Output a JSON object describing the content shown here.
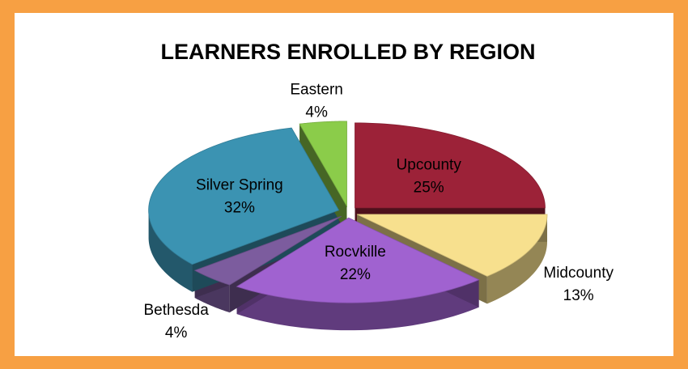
{
  "chart_data": {
    "type": "pie",
    "title": "LEARNERS ENROLLED BY REGION",
    "categories": [
      "Upcounty",
      "Midcounty",
      "Rocvkille",
      "Bethesda",
      "Silver Spring",
      "Eastern"
    ],
    "values": [
      25,
      13,
      22,
      4,
      32,
      4
    ],
    "value_labels": [
      "25%",
      "13%",
      "22%",
      "4%",
      "32%",
      "4%"
    ],
    "colors": [
      "#9c2238",
      "#f7e08e",
      "#a062d0",
      "#7c5c9e",
      "#3b93b2",
      "#8bcc4a"
    ]
  }
}
